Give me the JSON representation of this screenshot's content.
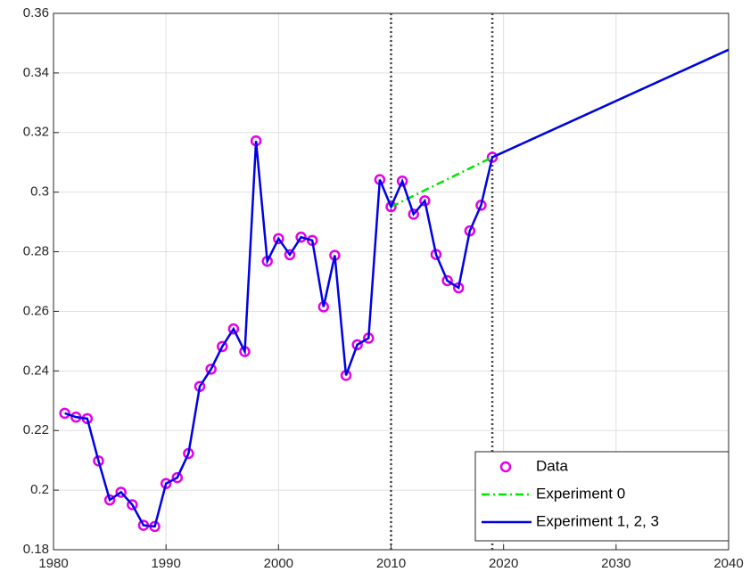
{
  "chart_data": {
    "type": "line",
    "xlim": [
      1980,
      2040
    ],
    "xticks": [
      1980,
      1990,
      2000,
      2010,
      2020,
      2030,
      2040
    ],
    "ylim": [
      0.18,
      0.36
    ],
    "yticks": [
      0.18,
      0.2,
      0.22,
      0.24,
      0.26,
      0.28,
      0.3,
      0.32,
      0.34,
      0.36
    ],
    "grid": true,
    "vlines": [
      2010,
      2019
    ],
    "legend": "lower right",
    "series": [
      {
        "name": "Data",
        "color": "#e600e6",
        "style": "marker",
        "x": [
          1981,
          1982,
          1983,
          1984,
          1985,
          1986,
          1987,
          1988,
          1989,
          1990,
          1991,
          1992,
          1993,
          1994,
          1995,
          1996,
          1997,
          1998,
          1999,
          2000,
          2001,
          2002,
          2003,
          2004,
          2005,
          2006,
          2007,
          2008,
          2009,
          2010,
          2011,
          2012,
          2013,
          2014,
          2015,
          2016,
          2017,
          2018,
          2019
        ],
        "values": [
          0.2258,
          0.2245,
          0.224,
          0.2098,
          0.1967,
          0.1993,
          0.1951,
          0.1882,
          0.1878,
          0.2022,
          0.2042,
          0.2123,
          0.2348,
          0.2406,
          0.2482,
          0.2541,
          0.2465,
          0.3172,
          0.2768,
          0.2844,
          0.279,
          0.2849,
          0.2838,
          0.2615,
          0.2788,
          0.2385,
          0.2488,
          0.251,
          0.3042,
          0.2951,
          0.3037,
          0.2926,
          0.2971,
          0.2791,
          0.2703,
          0.2679,
          0.287,
          0.2956,
          0.3117
        ]
      },
      {
        "name": "Experiment 0",
        "color": "#00e600",
        "style": "dashdot",
        "x": [
          2010,
          2019,
          2040
        ],
        "values": [
          0.2951,
          0.3117,
          0.3478
        ]
      },
      {
        "name": "Experiment 1, 2, 3",
        "color": "#0000e6",
        "style": "solid",
        "x": [
          1981,
          1982,
          1983,
          1984,
          1985,
          1986,
          1987,
          1988,
          1989,
          1990,
          1991,
          1992,
          1993,
          1994,
          1995,
          1996,
          1997,
          1998,
          1999,
          2000,
          2001,
          2002,
          2003,
          2004,
          2005,
          2006,
          2007,
          2008,
          2009,
          2010,
          2011,
          2012,
          2013,
          2014,
          2015,
          2016,
          2017,
          2018,
          2019,
          2040
        ],
        "values": [
          0.2258,
          0.2245,
          0.224,
          0.2098,
          0.1967,
          0.1993,
          0.1951,
          0.1882,
          0.1878,
          0.2022,
          0.2042,
          0.2123,
          0.2348,
          0.2406,
          0.2482,
          0.2541,
          0.2465,
          0.3172,
          0.2768,
          0.2844,
          0.279,
          0.2849,
          0.2838,
          0.2615,
          0.2788,
          0.2385,
          0.2488,
          0.251,
          0.3042,
          0.2951,
          0.3037,
          0.2926,
          0.2971,
          0.2791,
          0.2703,
          0.2679,
          0.287,
          0.2956,
          0.3117,
          0.3478
        ]
      }
    ]
  }
}
